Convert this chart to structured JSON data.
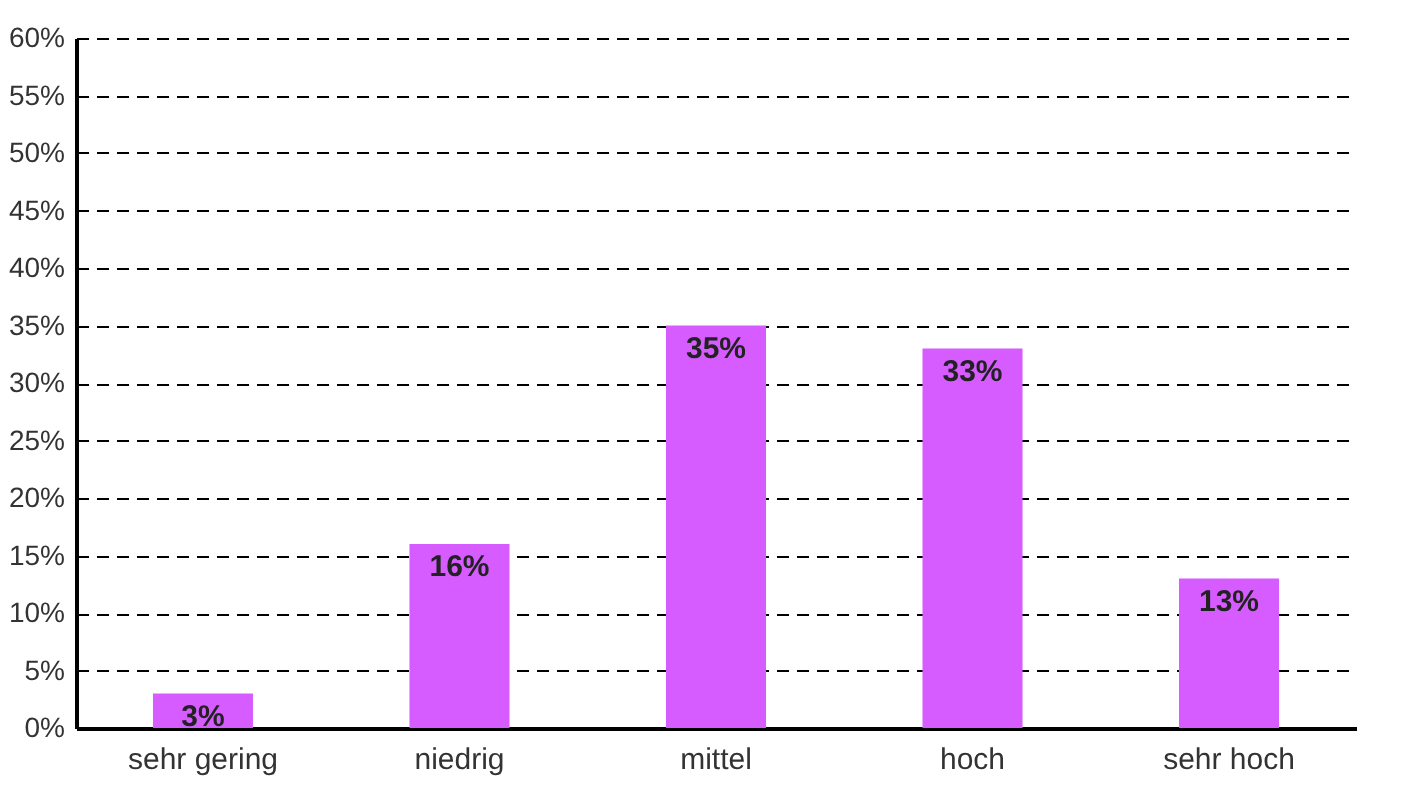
{
  "chart_data": {
    "type": "bar",
    "categories": [
      "sehr gering",
      "niedrig",
      "mittel",
      "hoch",
      "sehr hoch"
    ],
    "values": [
      3,
      16,
      35,
      33,
      13
    ],
    "value_labels": [
      "3%",
      "16%",
      "35%",
      "33%",
      "13%"
    ],
    "color": "#d65cff",
    "ylim": [
      0,
      60
    ],
    "yticks": [
      {
        "value": 0,
        "label": "0%"
      },
      {
        "value": 5,
        "label": "5%"
      },
      {
        "value": 10,
        "label": "10%"
      },
      {
        "value": 15,
        "label": "15%"
      },
      {
        "value": 20,
        "label": "20%"
      },
      {
        "value": 25,
        "label": "25%"
      },
      {
        "value": 30,
        "label": "30%"
      },
      {
        "value": 35,
        "label": "35%"
      },
      {
        "value": 40,
        "label": "40%"
      },
      {
        "value": 45,
        "label": "45%"
      },
      {
        "value": 50,
        "label": "50%"
      },
      {
        "value": 55,
        "label": "55%"
      },
      {
        "value": 60,
        "label": "60%"
      }
    ],
    "grid": "y",
    "line_style": "dashed"
  }
}
